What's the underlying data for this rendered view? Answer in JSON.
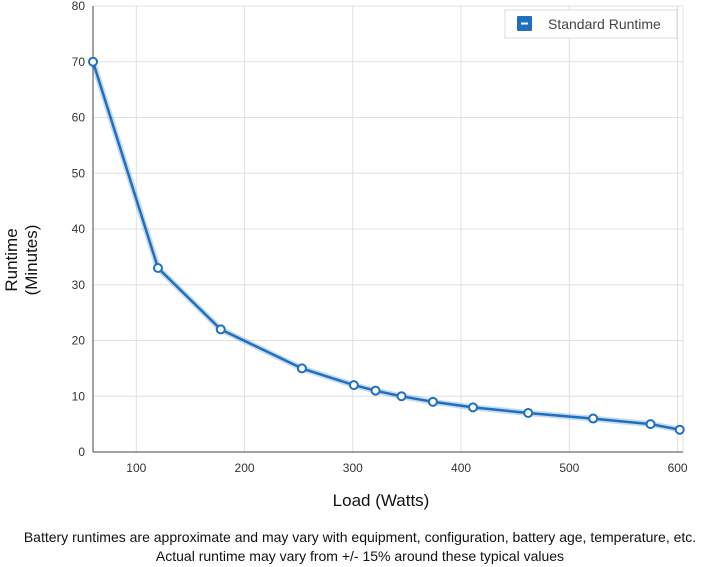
{
  "chart_data": {
    "type": "line",
    "xlabel": "Load (Watts)",
    "ylabel_line1": "Runtime",
    "ylabel_line2": "(Minutes)",
    "xlim": [
      60,
      605
    ],
    "ylim": [
      0,
      80
    ],
    "x_ticks": [
      100,
      200,
      300,
      400,
      500,
      600
    ],
    "y_ticks": [
      0,
      10,
      20,
      30,
      40,
      50,
      60,
      70,
      80
    ],
    "grid": true,
    "legend_position": "top-right",
    "series": [
      {
        "name": "Standard Runtime",
        "color": "#1f6fbf",
        "points": [
          {
            "x": 60,
            "y": 70
          },
          {
            "x": 120,
            "y": 33
          },
          {
            "x": 178,
            "y": 22
          },
          {
            "x": 253,
            "y": 15
          },
          {
            "x": 301,
            "y": 12
          },
          {
            "x": 321,
            "y": 11
          },
          {
            "x": 345,
            "y": 10
          },
          {
            "x": 374,
            "y": 9
          },
          {
            "x": 411,
            "y": 8
          },
          {
            "x": 462,
            "y": 7
          },
          {
            "x": 522,
            "y": 6
          },
          {
            "x": 575,
            "y": 5
          },
          {
            "x": 602,
            "y": 4
          }
        ]
      }
    ]
  },
  "legend_icon": "minus-icon",
  "footnote": {
    "line1": "Battery runtimes are approximate and may vary with equipment, configuration, battery age, temperature, etc.",
    "line2": "Actual runtime may vary from +/- 15% around these typical values"
  }
}
